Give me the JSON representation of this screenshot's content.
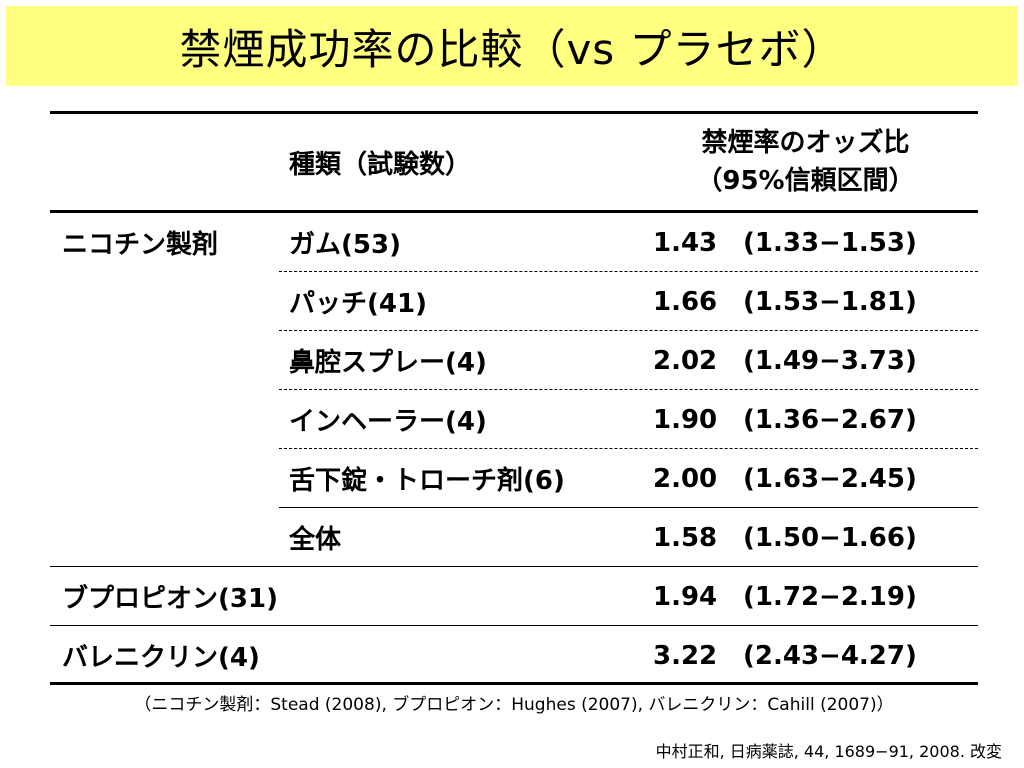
{
  "title": "禁煙成功率の比較（vs プラセボ）",
  "table": {
    "header": {
      "type_label": "種類（試験数）",
      "or_label_line1": "禁煙率のオッズ比",
      "or_label_line2": "（95%信頼区間）"
    },
    "nicotine_class": "ニコチン製剤",
    "rows": [
      {
        "type": "ガム(53)",
        "or": "1.43",
        "ci": "(1.33−1.53)"
      },
      {
        "type": "パッチ(41)",
        "or": "1.66",
        "ci": "(1.53−1.81)"
      },
      {
        "type": "鼻腔スプレー(4)",
        "or": "2.02",
        "ci": "(1.49−3.73)"
      },
      {
        "type": "インヘーラー(4)",
        "or": "1.90",
        "ci": "(1.36−2.67)"
      },
      {
        "type": "舌下錠・トローチ剤(6)",
        "or": "2.00",
        "ci": "(1.63−2.45)"
      },
      {
        "type": "全体",
        "or": "1.58",
        "ci": "(1.50−1.66)"
      }
    ],
    "bupropion": {
      "label": "ブプロピオン(31)",
      "or": "1.94",
      "ci": "(1.72−2.19)"
    },
    "varenicline": {
      "label": "バレニクリン(4)",
      "or": "3.22",
      "ci": "(2.43−4.27)"
    }
  },
  "footnote": "（ニコチン製剤：Stead (2008), ブプロピオン：Hughes (2007), バレニクリン：Cahill (2007)）",
  "citation": "中村正和,  日病薬誌, 44, 1689−91, 2008. 改変",
  "colors": {
    "title_bg": "#ffff80"
  }
}
